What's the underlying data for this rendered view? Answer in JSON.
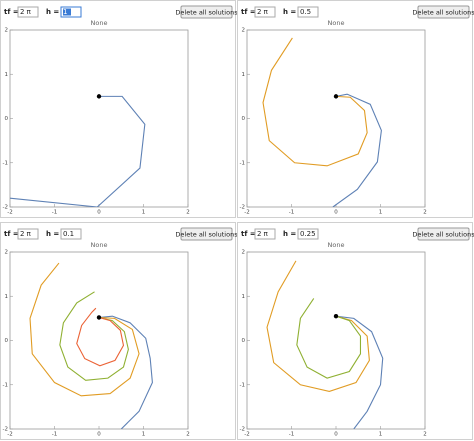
{
  "panels": [
    {
      "tf_label": "tf =",
      "tf_value": "2 π",
      "h_label": "h =",
      "h_value": "1",
      "button": "Delete all solutions",
      "plot": {
        "title": "None",
        "xlim": [
          -2,
          2
        ],
        "ylim": [
          -2,
          2
        ],
        "xticks": [
          -2,
          -1,
          0,
          1,
          2
        ],
        "yticks": [
          -2,
          -1,
          0,
          1,
          2
        ],
        "start": {
          "x": 0,
          "y": 0.5
        },
        "series": [
          {
            "color": "#5e81b5",
            "x": [
              0,
              0.52,
              1.03,
              0.92,
              -0.04,
              -2
            ],
            "y": [
              0.5,
              0.5,
              -0.13,
              -1.12,
              -2.0,
              -1.8
            ]
          }
        ]
      }
    },
    {
      "tf_label": "tf =",
      "tf_value": "2 π",
      "h_label": "h =",
      "h_value": "0.5",
      "button": "Delete all solutions",
      "plot": {
        "title": "None",
        "xlim": [
          -2,
          2
        ],
        "ylim": [
          -2,
          2
        ],
        "xticks": [
          -2,
          -1,
          0,
          1,
          2
        ],
        "yticks": [
          -2,
          -1,
          0,
          1,
          2
        ],
        "start": {
          "x": 0,
          "y": 0.5
        },
        "series": [
          {
            "color": "#5e81b5",
            "x": [
              0,
              0.25,
              0.77,
              1.02,
              0.93,
              0.48,
              -0.07
            ],
            "y": [
              0.5,
              0.55,
              0.32,
              -0.27,
              -0.98,
              -1.6,
              -2.0
            ]
          },
          {
            "color": "#e19c24",
            "x": [
              0,
              0.32,
              0.64,
              0.7,
              0.5,
              -0.2,
              -0.93,
              -1.5,
              -1.64,
              -1.45,
              -0.98
            ],
            "y": [
              0.5,
              0.48,
              0.18,
              -0.32,
              -0.8,
              -1.07,
              -1.0,
              -0.5,
              0.36,
              1.09,
              1.82
            ]
          }
        ]
      }
    },
    {
      "tf_label": "tf =",
      "tf_value": "2 π",
      "h_label": "h =",
      "h_value": "0.1",
      "button": "Delete all solutions",
      "plot": {
        "title": "None",
        "xlim": [
          -2,
          2
        ],
        "ylim": [
          -2,
          2
        ],
        "xticks": [
          -2,
          -1,
          0,
          1,
          2
        ],
        "yticks": [
          -2,
          -1,
          0,
          1,
          2
        ],
        "start": {
          "x": 0,
          "y": 0.52
        },
        "series": [
          {
            "color": "#5e81b5",
            "x": [
              0,
              0.3,
              0.7,
              1.05,
              1.15,
              1.2,
              0.9,
              0.5
            ],
            "y": [
              0.52,
              0.55,
              0.4,
              0.05,
              -0.4,
              -0.95,
              -1.6,
              -2.0
            ]
          },
          {
            "color": "#e19c24",
            "x": [
              0,
              0.35,
              0.75,
              0.9,
              0.7,
              0.25,
              -0.4,
              -1.0,
              -1.5,
              -1.55,
              -1.3,
              -0.9
            ],
            "y": [
              0.52,
              0.5,
              0.25,
              -0.3,
              -0.85,
              -1.2,
              -1.25,
              -0.95,
              -0.3,
              0.5,
              1.25,
              1.75
            ]
          },
          {
            "color": "#8fb032",
            "x": [
              0,
              0.3,
              0.57,
              0.66,
              0.55,
              0.2,
              -0.3,
              -0.7,
              -0.88,
              -0.8,
              -0.5,
              -0.1
            ],
            "y": [
              0.52,
              0.45,
              0.2,
              -0.2,
              -0.6,
              -0.85,
              -0.9,
              -0.6,
              -0.1,
              0.4,
              0.85,
              1.1
            ]
          },
          {
            "color": "#eb6235",
            "x": [
              0,
              0.25,
              0.48,
              0.55,
              0.36,
              0.02,
              -0.32,
              -0.5,
              -0.39,
              -0.16,
              -0.07
            ],
            "y": [
              0.52,
              0.45,
              0.23,
              -0.11,
              -0.45,
              -0.57,
              -0.41,
              -0.07,
              0.34,
              0.64,
              0.73
            ]
          }
        ]
      }
    },
    {
      "tf_label": "tf =",
      "tf_value": "2 π",
      "h_label": "h =",
      "h_value": "0.25",
      "button": "Delete all solutions",
      "plot": {
        "title": "None",
        "xlim": [
          -2,
          2
        ],
        "ylim": [
          -2,
          2
        ],
        "xticks": [
          -2,
          -1,
          0,
          1,
          2
        ],
        "yticks": [
          -2,
          -1,
          0,
          1,
          2
        ],
        "start": {
          "x": 0,
          "y": 0.55
        },
        "series": [
          {
            "color": "#5e81b5",
            "x": [
              0,
              0.4,
              0.8,
              1.05,
              1.0,
              0.7,
              0.4
            ],
            "y": [
              0.55,
              0.5,
              0.2,
              -0.4,
              -1.0,
              -1.6,
              -2.0
            ]
          },
          {
            "color": "#e19c24",
            "x": [
              0,
              0.35,
              0.7,
              0.75,
              0.45,
              -0.15,
              -0.8,
              -1.4,
              -1.55,
              -1.3,
              -0.9
            ],
            "y": [
              0.55,
              0.45,
              0.1,
              -0.45,
              -0.95,
              -1.15,
              -1.0,
              -0.5,
              0.3,
              1.1,
              1.8
            ]
          },
          {
            "color": "#8fb032",
            "x": [
              0,
              0.3,
              0.55,
              0.55,
              0.3,
              -0.2,
              -0.65,
              -0.88,
              -0.8,
              -0.5
            ],
            "y": [
              0.55,
              0.45,
              0.1,
              -0.3,
              -0.7,
              -0.85,
              -0.6,
              -0.1,
              0.5,
              0.95
            ]
          }
        ]
      }
    }
  ]
}
